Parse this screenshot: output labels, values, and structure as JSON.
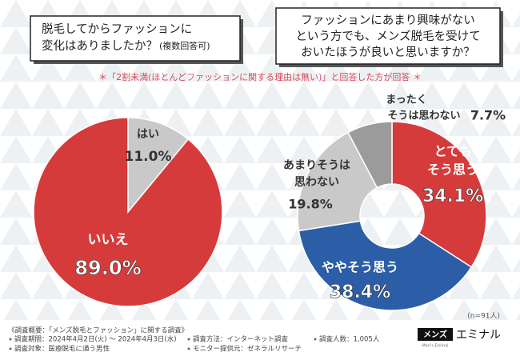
{
  "chart_data": [
    {
      "type": "pie",
      "title": [
        "脱毛してからファッションに",
        "変化はありましたか？"
      ],
      "subtitle": "(複数回答可)",
      "categories": [
        "はい",
        "いいえ"
      ],
      "values": [
        11.0,
        89.0
      ],
      "value_labels": [
        "11.0%",
        "89.0%"
      ],
      "colors": [
        "#c9c9c9",
        "#d63b3b"
      ]
    },
    {
      "type": "donut",
      "title": [
        "ファッションにあまり興味がない",
        "という方でも、メンズ脱毛を受けて",
        "おいたほうが良いと思いますか？"
      ],
      "categories": [
        [
          "とても",
          "そう思う"
        ],
        [
          "ややそう思う"
        ],
        [
          "あまりそうは",
          "思わない"
        ],
        [
          "まったく",
          "そうは思わない"
        ]
      ],
      "values": [
        34.1,
        38.4,
        19.8,
        7.7
      ],
      "value_labels": [
        "34.1%",
        "38.4%",
        "19.8%",
        "7.7%"
      ],
      "colors": [
        "#d63b3b",
        "#2b5ea7",
        "#c9c9c9",
        "#9b9b9b"
      ],
      "sample": "(n=91人)"
    }
  ],
  "note": "＊「2割未満(ほとんどファッションに関する理由は無い)」と回答した方が回答 ＊",
  "footer": {
    "heading": "《調査概要：「メンズ脱毛とファッション」に関する調査》",
    "items": [
      "調査期間：2024年4月2日(火) 〜 2024年4月3日(水)",
      "調査対象：医療脱毛に通う男性",
      "調査方法：インターネット調査",
      "モニター提供元：ゼネラルリサーチ",
      "調査人数：1,005人"
    ],
    "logo": {
      "badge": "メンズ",
      "name": "エミナル",
      "tagline": "Men's Eminal"
    }
  }
}
